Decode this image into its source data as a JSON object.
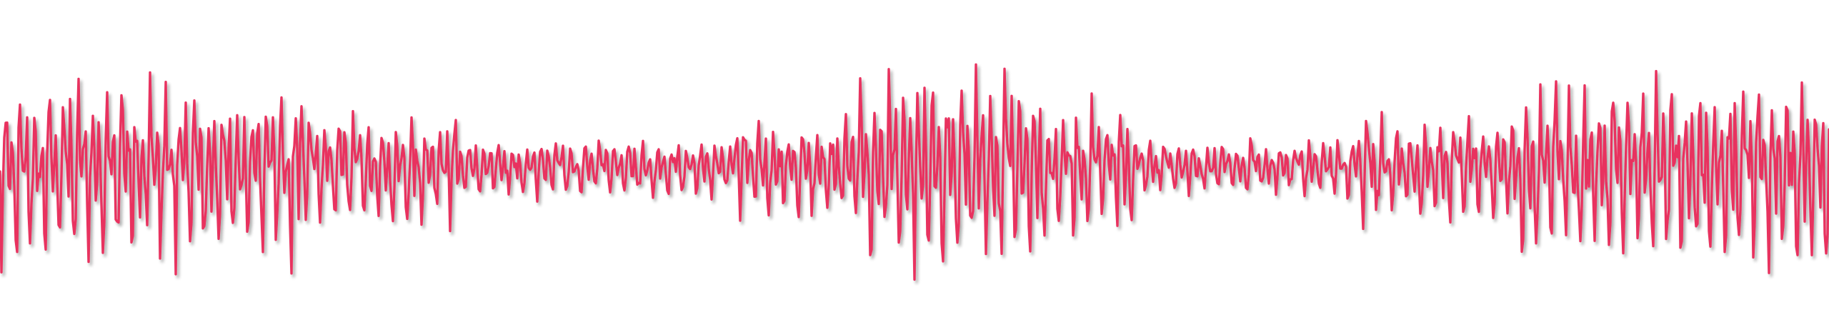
{
  "waveform": {
    "stroke_color": "#e8325f",
    "shadow_color": "#000000",
    "cycles_per_burst": 1.3,
    "bursts": [
      {
        "from": 0.0,
        "to": 0.17,
        "amp": 0.9
      },
      {
        "from": 0.17,
        "to": 0.25,
        "amp": 0.55
      },
      {
        "from": 0.25,
        "to": 0.4,
        "amp": 0.28
      },
      {
        "from": 0.4,
        "to": 0.47,
        "amp": 0.55
      },
      {
        "from": 0.47,
        "to": 0.57,
        "amp": 0.95
      },
      {
        "from": 0.57,
        "to": 0.62,
        "amp": 0.7
      },
      {
        "from": 0.62,
        "to": 0.74,
        "amp": 0.3
      },
      {
        "from": 0.74,
        "to": 0.83,
        "amp": 0.55
      },
      {
        "from": 0.83,
        "to": 1.0,
        "amp": 0.95
      }
    ]
  }
}
